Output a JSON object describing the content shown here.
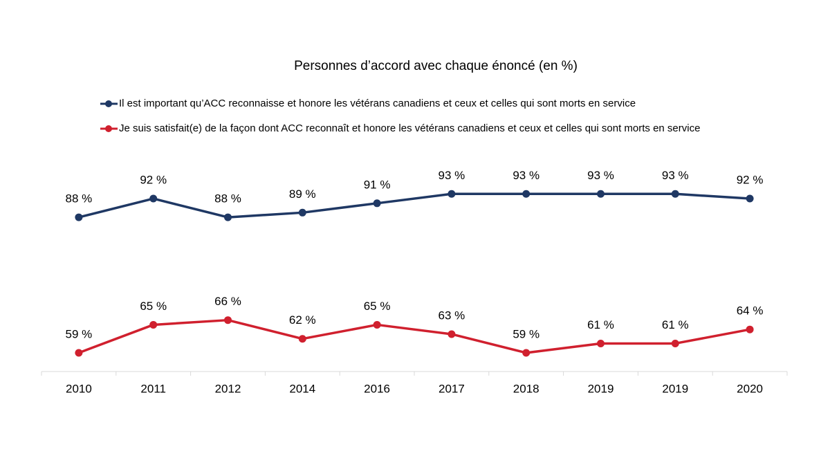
{
  "chart_data": {
    "type": "line",
    "title": "Personnes d’accord avec chaque énoncé (en %)",
    "categories": [
      "2010",
      "2011",
      "2012",
      "2014",
      "2016",
      "2017",
      "2018",
      "2019",
      "2019",
      "2020"
    ],
    "ylim": [
      55,
      100
    ],
    "series": [
      {
        "name": "Il est important qu’ACC reconnaisse et honore les vétérans canadiens et ceux et celles qui sont morts en service",
        "color": "#1f3864",
        "values": [
          88,
          92,
          88,
          89,
          91,
          93,
          93,
          93,
          93,
          92
        ],
        "value_labels": [
          "88 %",
          "92 %",
          "88 %",
          "89 %",
          "91 %",
          "93 %",
          "93 %",
          "93 %",
          "93 %",
          "92 %"
        ]
      },
      {
        "name": "Je suis satisfait(e) de la façon dont ACC reconnaît et honore les vétérans canadiens et ceux et celles qui sont morts en service",
        "color": "#d0202e",
        "values": [
          59,
          65,
          66,
          62,
          65,
          63,
          59,
          61,
          61,
          64
        ],
        "value_labels": [
          "59 %",
          "65 %",
          "66 %",
          "62 %",
          "65 %",
          "63 %",
          "59 %",
          "61 %",
          "61 %",
          "64 %"
        ]
      }
    ]
  }
}
